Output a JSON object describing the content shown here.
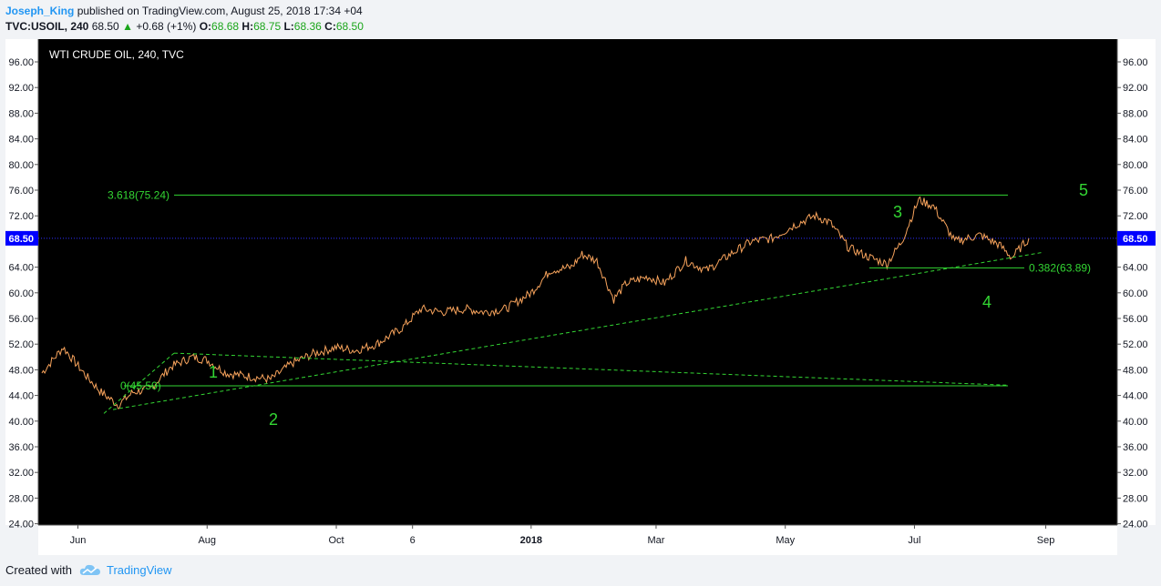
{
  "header": {
    "author": "Joseph_King",
    "published_text": "published on TradingView.com, August 25, 2018 17:34 +04",
    "symbol": "TVC:USOIL, 240",
    "last": "68.50",
    "change_arrow": "▲",
    "change": "+0.68 (+1%)",
    "o_label": "O:",
    "o_value": "68.68",
    "h_label": "H:",
    "h_value": "68.75",
    "l_label": "L:",
    "l_value": "68.36",
    "c_label": "C:",
    "c_value": "68.50"
  },
  "footer": {
    "created_with": "Created with",
    "brand": "TradingView",
    "logo_icon": "tradingview-cloud-icon"
  },
  "colors": {
    "background": "#000000",
    "price_line": "#f7a35c",
    "annotation": "#33d633",
    "last_price_badge": "#0000ff",
    "last_price_line": "#2f2fff"
  },
  "chart_data": {
    "type": "line",
    "title": "WTI CRUDE OIL, 240, TVC",
    "ylim": [
      20,
      98
    ],
    "y_ticks": [
      "96.00",
      "92.00",
      "88.00",
      "84.00",
      "80.00",
      "76.00",
      "72.00",
      "68.50",
      "64.00",
      "60.00",
      "56.00",
      "52.00",
      "48.00",
      "44.00",
      "40.00",
      "36.00",
      "32.00",
      "28.00",
      "24.00"
    ],
    "x_ticks": [
      "Jun",
      "Aug",
      "Oct",
      "6",
      "2018",
      "Mar",
      "May",
      "Jul",
      "Sep"
    ],
    "last_price": "68.50",
    "series": [
      {
        "x": [
          "2017-05-15",
          "2017-05-25",
          "2017-06-05",
          "2017-06-12",
          "2017-06-20",
          "2017-06-27",
          "2017-07-05",
          "2017-07-15",
          "2017-07-25",
          "2017-08-01",
          "2017-08-10",
          "2017-08-20",
          "2017-08-31",
          "2017-09-10",
          "2017-09-20",
          "2017-10-01",
          "2017-10-10",
          "2017-10-20",
          "2017-11-01",
          "2017-11-10",
          "2017-11-20",
          "2017-12-01",
          "2017-12-10",
          "2017-12-20",
          "2018-01-01",
          "2018-01-10",
          "2018-01-20",
          "2018-01-25",
          "2018-02-01",
          "2018-02-09",
          "2018-02-15",
          "2018-02-25",
          "2018-03-05",
          "2018-03-15",
          "2018-03-25",
          "2018-04-05",
          "2018-04-15",
          "2018-04-25",
          "2018-05-05",
          "2018-05-15",
          "2018-05-22",
          "2018-05-31",
          "2018-06-10",
          "2018-06-18",
          "2018-06-25",
          "2018-07-03",
          "2018-07-10",
          "2018-07-20",
          "2018-08-01",
          "2018-08-10",
          "2018-08-16",
          "2018-08-24"
        ],
        "values": [
          47.5,
          51.5,
          47.0,
          44.5,
          42.5,
          44.5,
          45.0,
          48.5,
          50.0,
          49.5,
          47.5,
          47.0,
          46.5,
          49.0,
          50.5,
          51.5,
          51.0,
          52.0,
          54.5,
          57.5,
          57.0,
          57.5,
          57.0,
          57.5,
          60.0,
          63.5,
          64.0,
          66.0,
          65.0,
          59.0,
          61.5,
          62.5,
          61.5,
          65.0,
          63.5,
          66.0,
          68.0,
          68.5,
          70.5,
          72.0,
          71.0,
          67.0,
          65.5,
          64.5,
          68.0,
          74.5,
          73.5,
          68.0,
          69.0,
          67.5,
          65.5,
          68.5
        ]
      }
    ],
    "annotations": {
      "wave_labels": [
        "1",
        "2",
        "3",
        "4",
        "5"
      ],
      "fib_high_label": "3.618(75.24)",
      "fib_high_value": 75.24,
      "fib_zero_label": "0(45.50)",
      "fib_zero_value": 45.5,
      "retrace_label": "0.382(63.89)",
      "retrace_value": 63.89
    }
  }
}
